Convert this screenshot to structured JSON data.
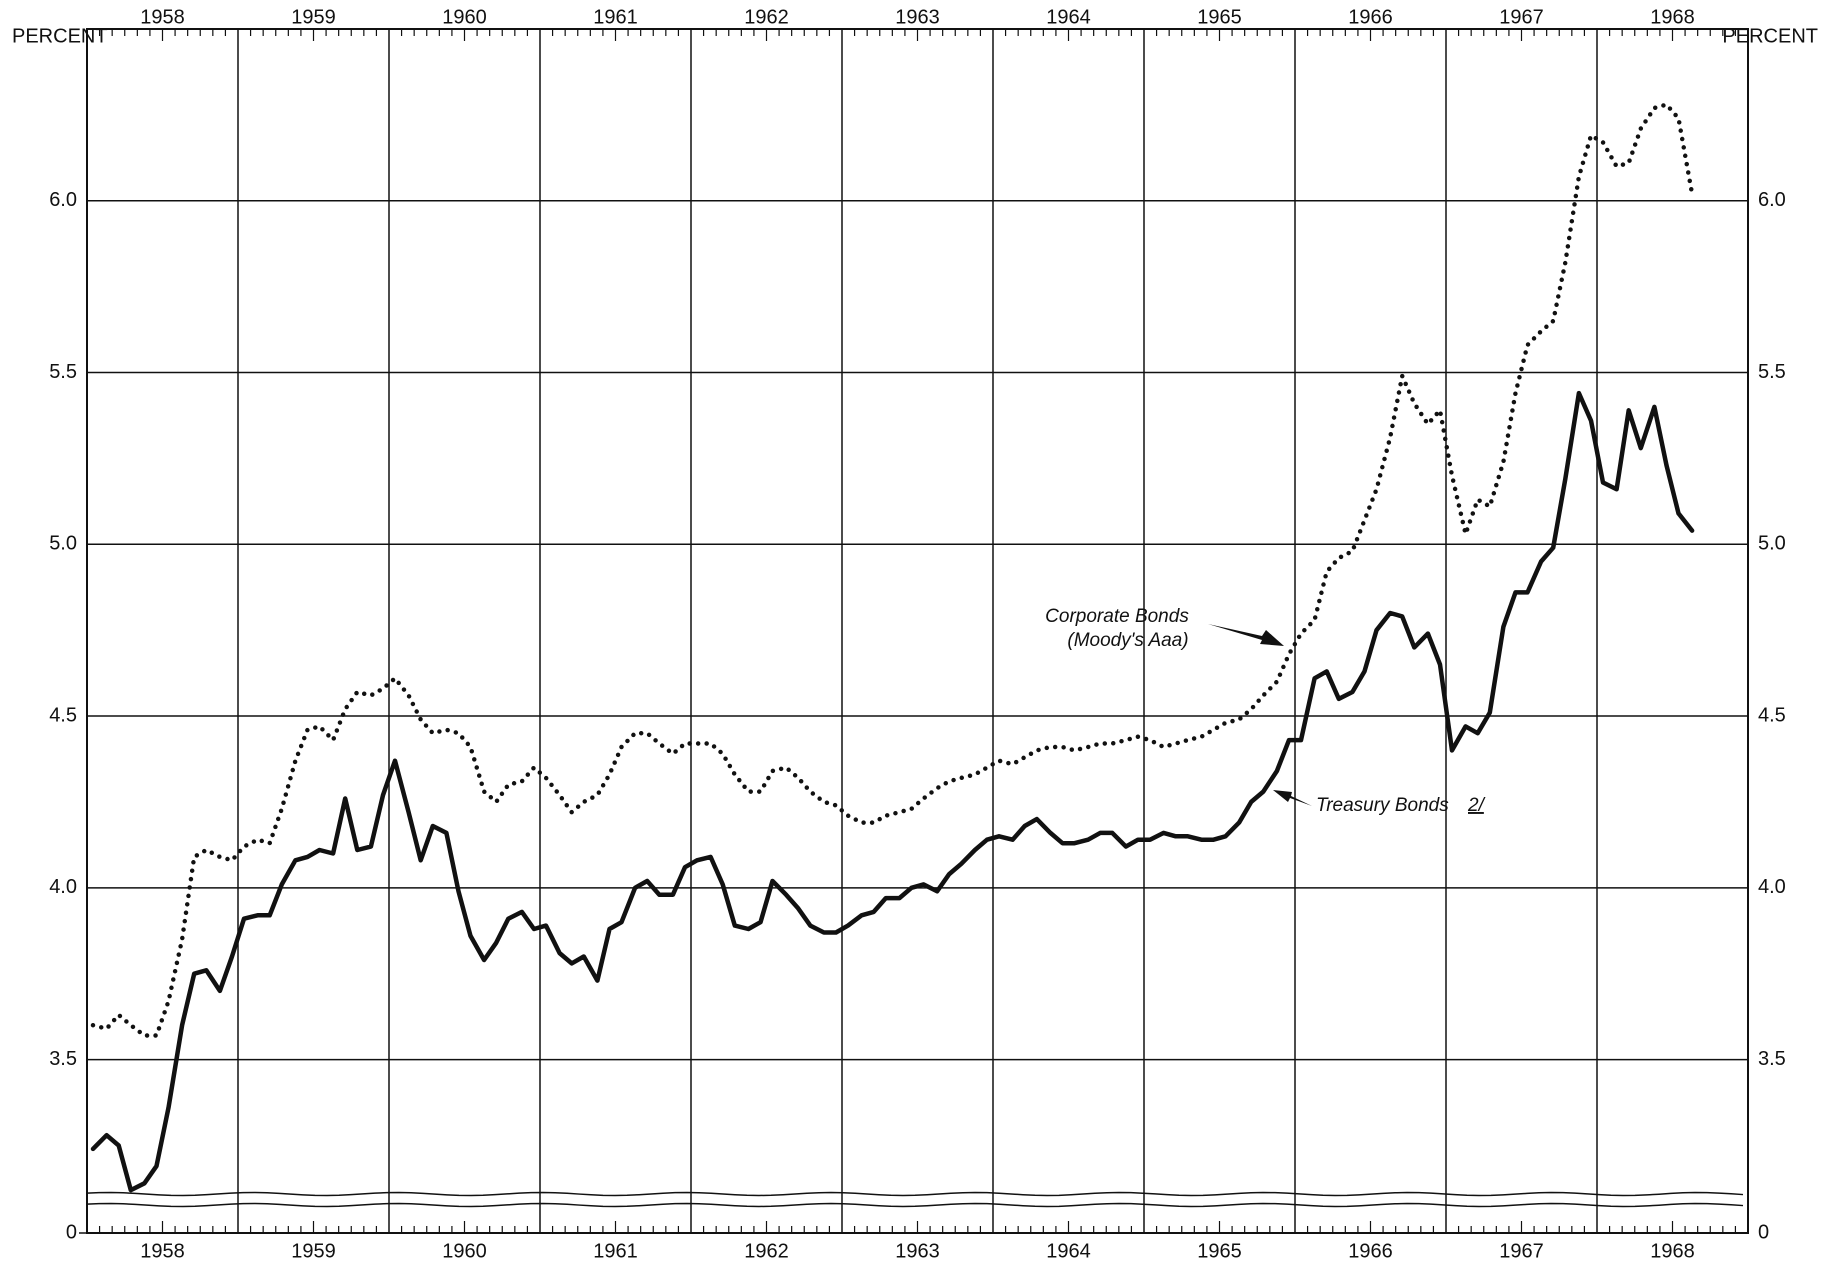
{
  "chart_data": {
    "type": "line",
    "y_label": "PERCENT",
    "xlim": [
      1958,
      1969
    ],
    "xticks": [
      1958,
      1959,
      1960,
      1961,
      1962,
      1963,
      1964,
      1965,
      1966,
      1967,
      1968
    ],
    "ylim": [
      0,
      6.5
    ],
    "axis_break": [
      0,
      3.1
    ],
    "yticks": [
      0,
      3.5,
      {
        "value": 4,
        "label": "4.0"
      },
      4.5,
      {
        "value": 5,
        "label": "5.0"
      },
      5.5,
      {
        "value": 6,
        "label": "6.0"
      }
    ],
    "grid": true,
    "x": [
      1958.04,
      1958.13,
      1958.21,
      1958.29,
      1958.38,
      1958.46,
      1958.54,
      1958.63,
      1958.71,
      1958.79,
      1958.88,
      1958.96,
      1959.04,
      1959.13,
      1959.21,
      1959.29,
      1959.38,
      1959.46,
      1959.54,
      1959.63,
      1959.71,
      1959.79,
      1959.88,
      1959.96,
      1960.04,
      1960.13,
      1960.21,
      1960.29,
      1960.38,
      1960.46,
      1960.54,
      1960.63,
      1960.71,
      1960.79,
      1960.88,
      1960.96,
      1961.04,
      1961.13,
      1961.21,
      1961.29,
      1961.38,
      1961.46,
      1961.54,
      1961.63,
      1961.71,
      1961.79,
      1961.88,
      1961.96,
      1962.04,
      1962.13,
      1962.21,
      1962.29,
      1962.38,
      1962.46,
      1962.54,
      1962.63,
      1962.71,
      1962.79,
      1962.88,
      1962.96,
      1963.04,
      1963.13,
      1963.21,
      1963.29,
      1963.38,
      1963.46,
      1963.54,
      1963.63,
      1963.71,
      1963.79,
      1963.88,
      1963.96,
      1964.04,
      1964.13,
      1964.21,
      1964.29,
      1964.38,
      1964.46,
      1964.54,
      1964.63,
      1964.71,
      1964.79,
      1964.88,
      1964.96,
      1965.04,
      1965.13,
      1965.21,
      1965.29,
      1965.38,
      1965.46,
      1965.54,
      1965.63,
      1965.71,
      1965.79,
      1965.88,
      1965.96,
      1966.04,
      1966.13,
      1966.21,
      1966.29,
      1966.38,
      1966.46,
      1966.54,
      1966.63,
      1966.71,
      1966.79,
      1966.88,
      1966.96,
      1967.04,
      1967.13,
      1967.21,
      1967.29,
      1967.38,
      1967.46,
      1967.54,
      1967.63,
      1967.71,
      1967.79,
      1967.88,
      1967.96,
      1968.04,
      1968.13,
      1968.21,
      1968.29,
      1968.38,
      1968.46,
      1968.54,
      1968.63
    ],
    "series": [
      {
        "name": "Corporate Bonds",
        "note": "(Moody's Aaa)",
        "color": "#111111",
        "style": "dotted",
        "values": [
          3.6,
          3.59,
          3.63,
          3.6,
          3.57,
          3.57,
          3.67,
          3.85,
          4.09,
          4.11,
          4.09,
          4.08,
          4.12,
          4.14,
          4.13,
          4.23,
          4.37,
          4.46,
          4.47,
          4.43,
          4.52,
          4.57,
          4.56,
          4.58,
          4.61,
          4.56,
          4.49,
          4.45,
          4.46,
          4.45,
          4.41,
          4.28,
          4.25,
          4.3,
          4.31,
          4.35,
          4.32,
          4.27,
          4.22,
          4.25,
          4.27,
          4.33,
          4.41,
          4.45,
          4.45,
          4.42,
          4.39,
          4.42,
          4.42,
          4.42,
          4.39,
          4.33,
          4.28,
          4.28,
          4.34,
          4.35,
          4.32,
          4.28,
          4.25,
          4.24,
          4.21,
          4.19,
          4.19,
          4.21,
          4.22,
          4.23,
          4.26,
          4.29,
          4.31,
          4.32,
          4.33,
          4.35,
          4.37,
          4.36,
          4.38,
          4.4,
          4.41,
          4.41,
          4.4,
          4.41,
          4.42,
          4.42,
          4.43,
          4.44,
          4.43,
          4.41,
          4.42,
          4.43,
          4.44,
          4.46,
          4.48,
          4.49,
          4.52,
          4.56,
          4.6,
          4.68,
          4.74,
          4.78,
          4.92,
          4.96,
          4.98,
          5.07,
          5.16,
          5.31,
          5.49,
          5.41,
          5.35,
          5.39,
          5.2,
          5.03,
          5.13,
          5.11,
          5.24,
          5.44,
          5.58,
          5.62,
          5.65,
          5.82,
          6.07,
          6.19,
          6.17,
          6.1,
          6.11,
          6.21,
          6.27,
          6.28,
          6.24,
          6.02
        ]
      },
      {
        "name": "Treasury Bonds",
        "footnote": "2/",
        "color": "#111111",
        "style": "solid",
        "values": [
          3.24,
          3.28,
          3.25,
          3.12,
          3.14,
          3.19,
          3.36,
          3.6,
          3.75,
          3.76,
          3.7,
          3.8,
          3.91,
          3.92,
          3.92,
          4.01,
          4.08,
          4.09,
          4.11,
          4.1,
          4.26,
          4.11,
          4.12,
          4.27,
          4.37,
          4.22,
          4.08,
          4.18,
          4.16,
          3.99,
          3.86,
          3.79,
          3.84,
          3.91,
          3.93,
          3.88,
          3.89,
          3.81,
          3.78,
          3.8,
          3.73,
          3.88,
          3.9,
          4.0,
          4.02,
          3.98,
          3.98,
          4.06,
          4.08,
          4.09,
          4.01,
          3.89,
          3.88,
          3.9,
          4.02,
          3.98,
          3.94,
          3.89,
          3.87,
          3.87,
          3.89,
          3.92,
          3.93,
          3.97,
          3.97,
          4.0,
          4.01,
          3.99,
          4.04,
          4.07,
          4.11,
          4.14,
          4.15,
          4.14,
          4.18,
          4.2,
          4.16,
          4.13,
          4.13,
          4.14,
          4.16,
          4.16,
          4.12,
          4.14,
          4.14,
          4.16,
          4.15,
          4.15,
          4.14,
          4.14,
          4.15,
          4.19,
          4.25,
          4.28,
          4.34,
          4.43,
          4.43,
          4.61,
          4.63,
          4.55,
          4.57,
          4.63,
          4.75,
          4.8,
          4.79,
          4.7,
          4.74,
          4.65,
          4.4,
          4.47,
          4.45,
          4.51,
          4.76,
          4.86,
          4.86,
          4.95,
          4.99,
          5.19,
          5.44,
          5.36,
          5.18,
          5.16,
          5.39,
          5.28,
          5.4,
          5.23,
          5.09,
          5.04
        ]
      }
    ]
  }
}
